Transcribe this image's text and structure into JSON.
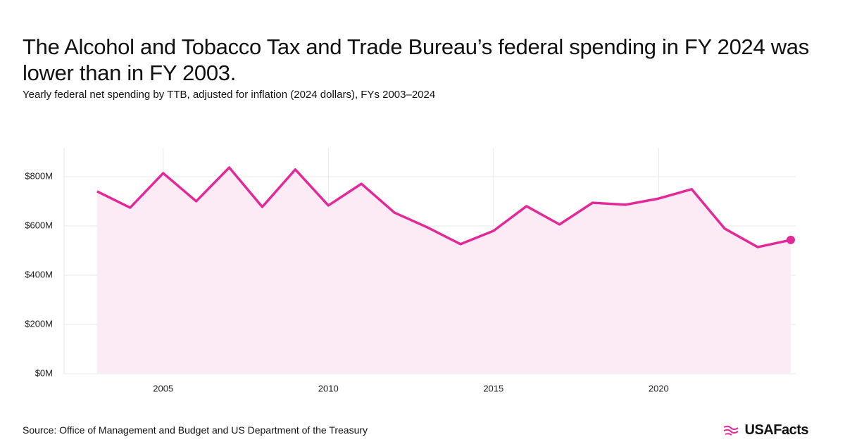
{
  "chart_data": {
    "type": "line",
    "title": "The Alcohol and Tobacco Tax and Trade Bureau’s federal spending in FY 2024 was lower than in FY 2003.",
    "subtitle": "Yearly federal net spending by TTB, adjusted for inflation (2024 dollars), FYs 2003–2024",
    "source": "Source: Office of Management and Budget and US Department of the Treasury",
    "logo": "USAFacts",
    "x": [
      2003,
      2004,
      2005,
      2006,
      2007,
      2008,
      2009,
      2010,
      2011,
      2012,
      2013,
      2014,
      2015,
      2016,
      2017,
      2018,
      2019,
      2020,
      2021,
      2022,
      2023,
      2024
    ],
    "values": [
      740,
      674,
      814,
      700,
      837,
      677,
      829,
      683,
      771,
      654,
      594,
      526,
      580,
      680,
      606,
      694,
      686,
      711,
      749,
      589,
      514,
      543
    ],
    "color": "#e3299a",
    "area_color": "#fcebf4",
    "xlim": [
      2002,
      2024.15
    ],
    "xticks": [
      2005,
      2010,
      2015,
      2020
    ],
    "ylim": [
      0,
      917
    ],
    "yticks": [
      {
        "value": 0,
        "label": "$0M"
      },
      {
        "value": 200,
        "label": "$200M"
      },
      {
        "value": 400,
        "label": "$400M"
      },
      {
        "value": 600,
        "label": "$600M"
      },
      {
        "value": 800,
        "label": "$800M"
      }
    ],
    "grid": true
  }
}
